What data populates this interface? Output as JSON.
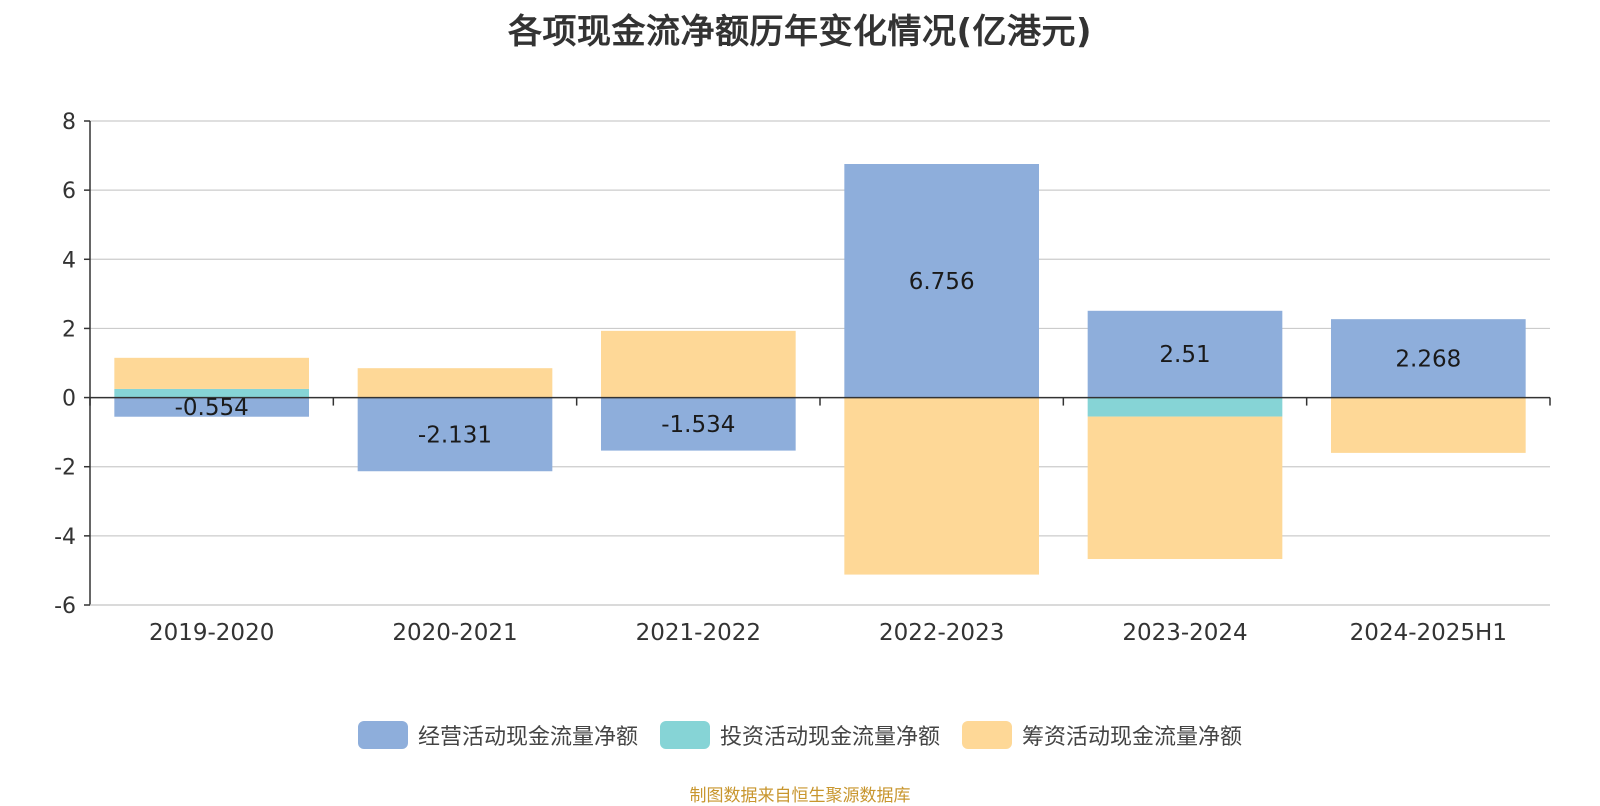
{
  "chart_data": {
    "type": "bar",
    "stacked": true,
    "title": "各项现金流净额历年变化情况(亿港元)",
    "xlabel": "",
    "ylabel": "",
    "categories": [
      "2019-2020",
      "2020-2021",
      "2021-2022",
      "2022-2023",
      "2023-2024",
      "2024-2025H1"
    ],
    "ylim": [
      -6,
      8
    ],
    "yticks": [
      8,
      6,
      4,
      2,
      0,
      -2,
      -4,
      -6
    ],
    "grid": true,
    "legend_position": "bottom",
    "series": [
      {
        "name": "经营活动现金流量净额",
        "color": "#8eaedb",
        "values": [
          -0.554,
          -2.131,
          -1.534,
          6.756,
          2.51,
          2.268
        ],
        "labels": [
          "-0.554",
          "-2.131",
          "-1.534",
          "6.756",
          "2.51",
          "2.268"
        ]
      },
      {
        "name": "投资活动现金流量净额",
        "color": "#86d4d6",
        "values": [
          0.25,
          0.0,
          0.0,
          0.0,
          -0.55,
          0.0
        ]
      },
      {
        "name": "筹资活动现金流量净额",
        "color": "#fed897",
        "values": [
          0.9,
          0.85,
          1.93,
          -5.12,
          -4.12,
          -1.6
        ]
      }
    ]
  },
  "source": "制图数据来自恒生聚源数据库"
}
